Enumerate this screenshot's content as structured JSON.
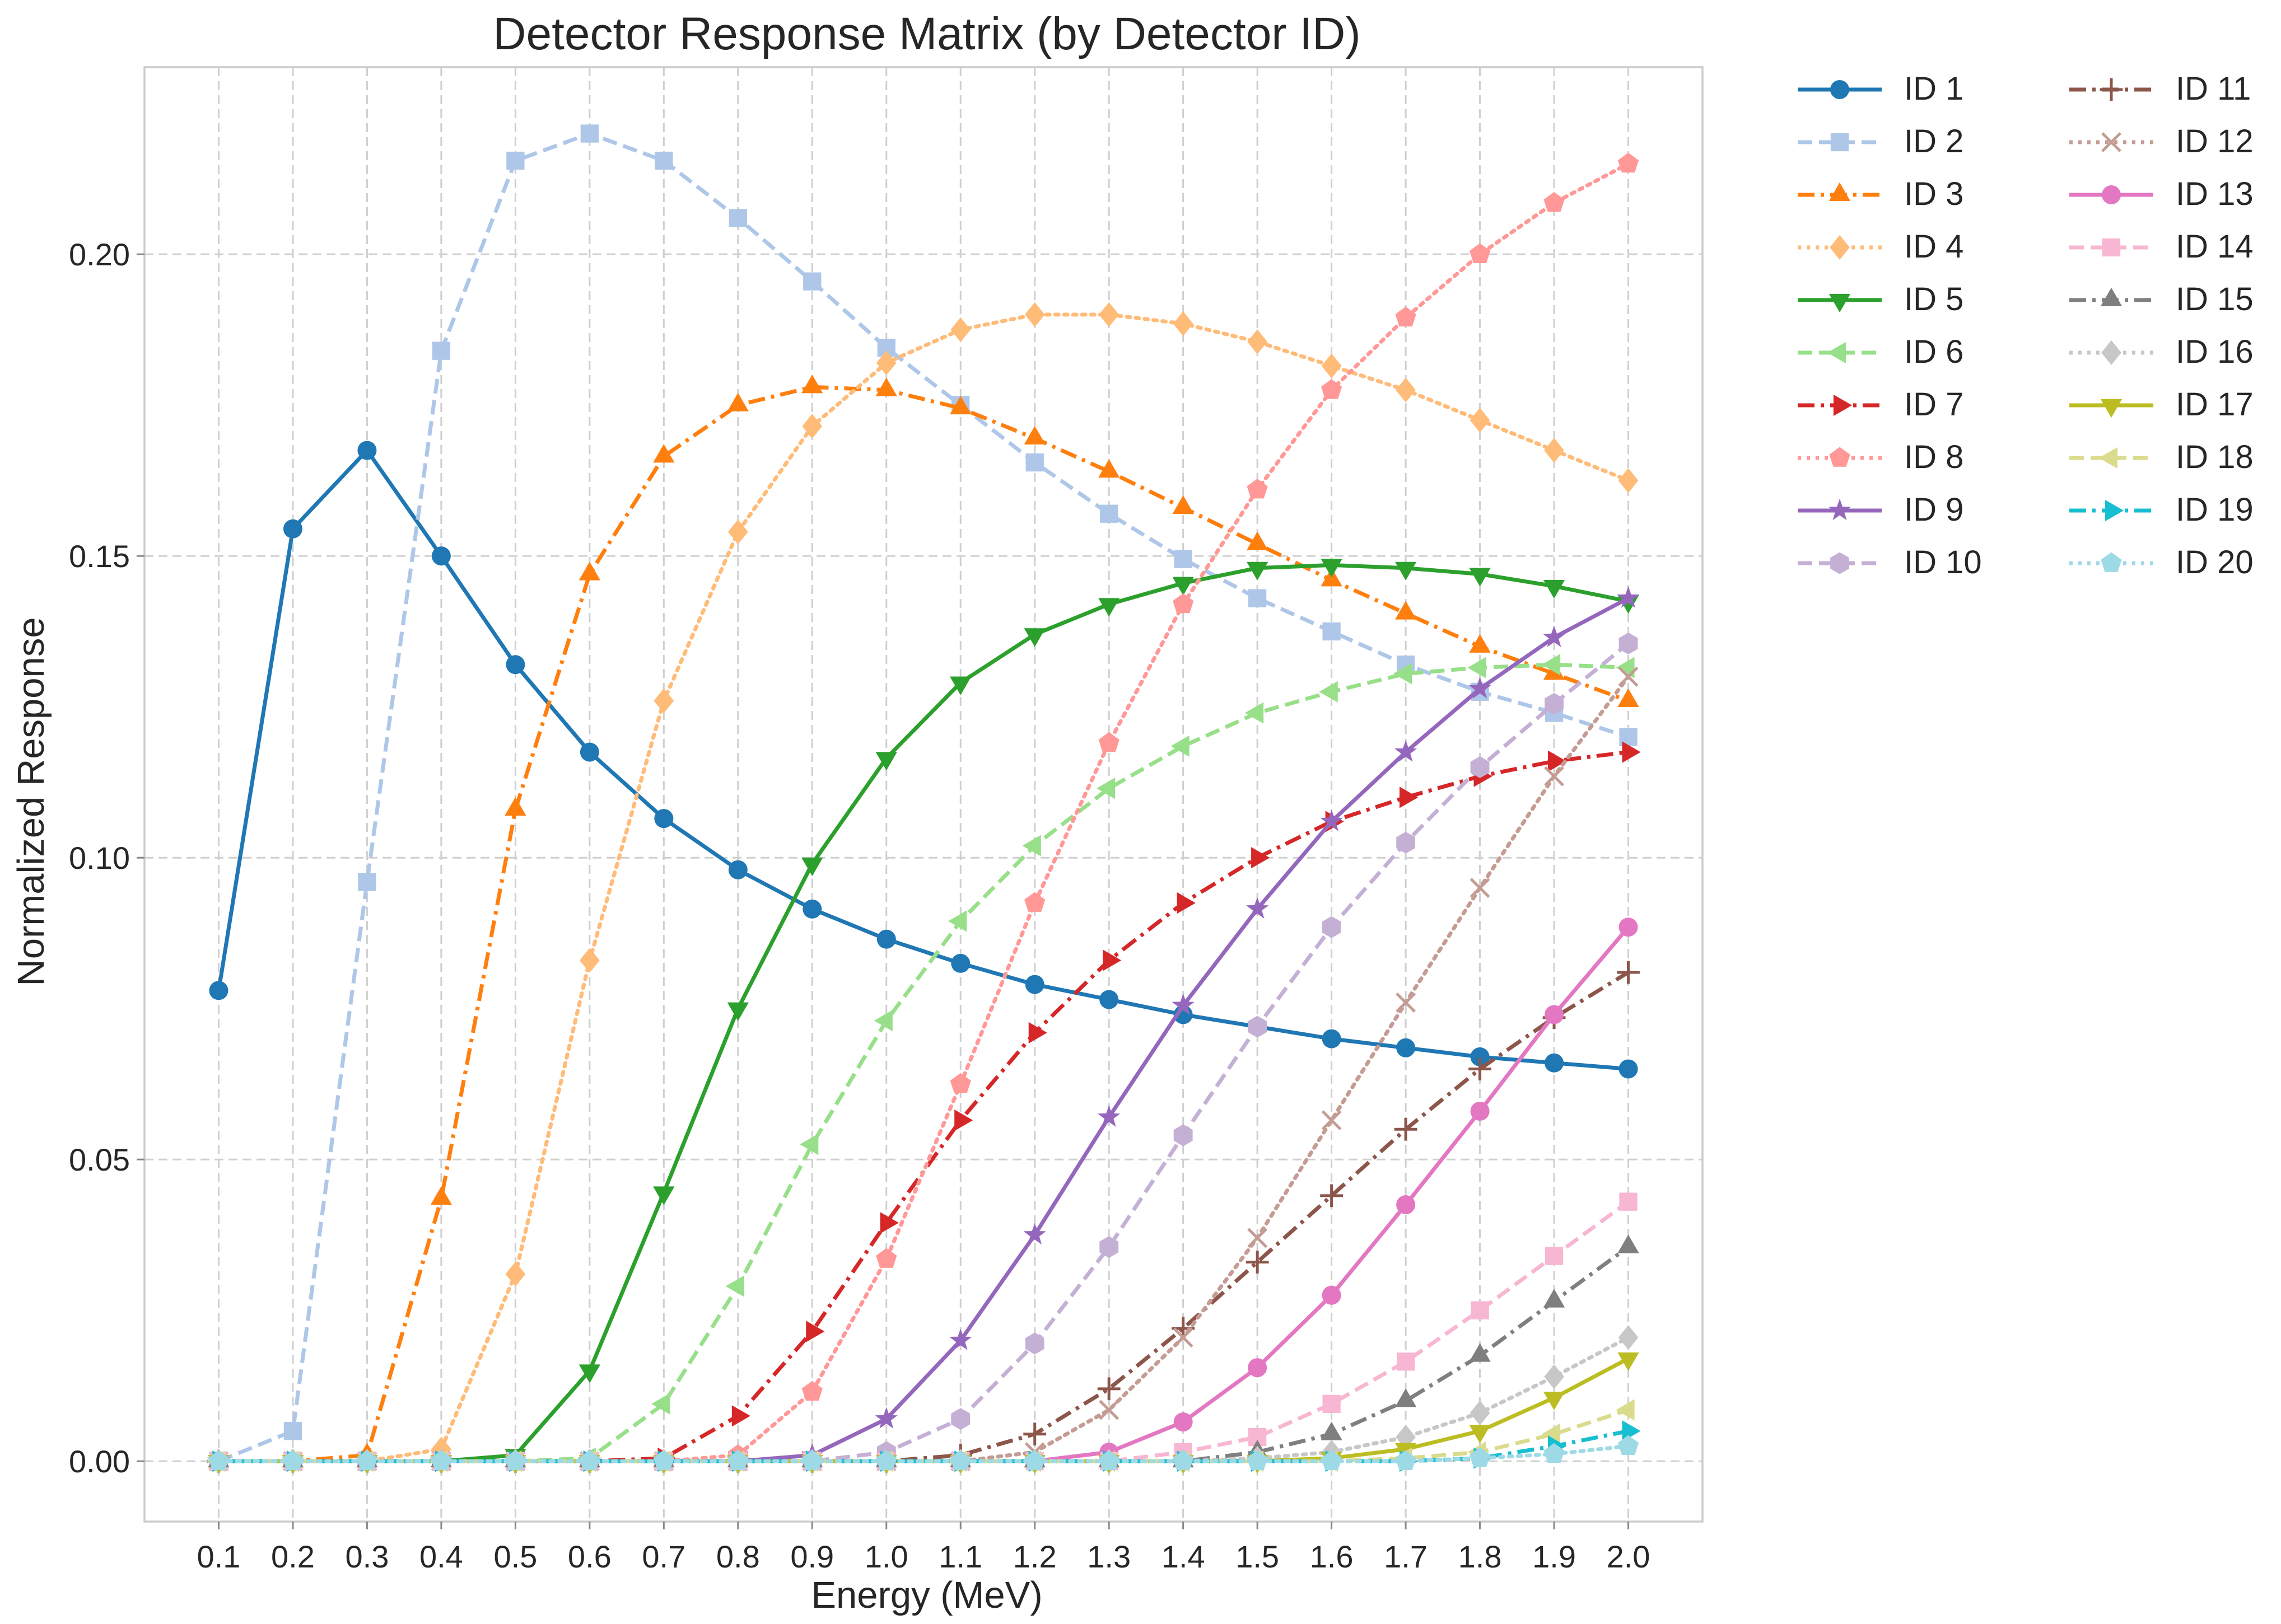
{
  "chart_data": {
    "type": "line",
    "title": "Detector Response Matrix (by Detector ID)",
    "xlabel": "Energy (MeV)",
    "ylabel": "Normalized Response",
    "xlim": [
      0.0,
      2.1
    ],
    "ylim": [
      -0.01,
      0.231
    ],
    "x": [
      0.1,
      0.2,
      0.3,
      0.4,
      0.5,
      0.6,
      0.7,
      0.8,
      0.9,
      1.0,
      1.1,
      1.2,
      1.3,
      1.4,
      1.5,
      1.6,
      1.7,
      1.8,
      1.9,
      2.0
    ],
    "x_tick_labels": [
      "0.1",
      "0.2",
      "0.3",
      "0.4",
      "0.5",
      "0.6",
      "0.7",
      "0.8",
      "0.9",
      "1.0",
      "1.1",
      "1.2",
      "1.3",
      "1.4",
      "1.5",
      "1.6",
      "1.7",
      "1.8",
      "1.9",
      "2.0"
    ],
    "y_ticks": [
      0.0,
      0.05,
      0.1,
      0.15,
      0.2
    ],
    "y_tick_labels": [
      "0.00",
      "0.05",
      "0.10",
      "0.15",
      "0.20"
    ],
    "grid": true,
    "legend": "outside-right, 2 columns",
    "series": [
      {
        "name": "ID 1",
        "color": "#1f77b4",
        "marker": "circle",
        "dash": "solid",
        "values": [
          0.078,
          0.1545,
          0.1675,
          0.15,
          0.132,
          0.1175,
          0.1065,
          0.098,
          0.0915,
          0.0865,
          0.0825,
          0.079,
          0.0765,
          0.074,
          0.072,
          0.07,
          0.0685,
          0.067,
          0.066,
          0.065
        ]
      },
      {
        "name": "ID 2",
        "color": "#aec7e8",
        "marker": "square",
        "dash": "dashed",
        "values": [
          0.0,
          0.005,
          0.096,
          0.184,
          0.2155,
          0.22,
          0.2155,
          0.206,
          0.1955,
          0.1845,
          0.175,
          0.1655,
          0.157,
          0.1495,
          0.143,
          0.1375,
          0.132,
          0.1275,
          0.124,
          0.12
        ]
      },
      {
        "name": "ID 3",
        "color": "#ff7f0e",
        "marker": "triangle-up",
        "dash": "dashdot",
        "values": [
          0.0,
          0.0,
          0.001,
          0.0435,
          0.108,
          0.147,
          0.1665,
          0.175,
          0.178,
          0.1775,
          0.1745,
          0.1695,
          0.164,
          0.158,
          0.152,
          0.146,
          0.1405,
          0.135,
          0.1305,
          0.126
        ]
      },
      {
        "name": "ID 4",
        "color": "#ffbb78",
        "marker": "diamond",
        "dash": "dotted",
        "values": [
          0.0,
          0.0,
          0.0,
          0.002,
          0.031,
          0.083,
          0.126,
          0.154,
          0.1715,
          0.182,
          0.1875,
          0.19,
          0.19,
          0.1885,
          0.1855,
          0.1815,
          0.1775,
          0.1725,
          0.1675,
          0.1625
        ]
      },
      {
        "name": "ID 5",
        "color": "#2ca02c",
        "marker": "triangle-down",
        "dash": "solid",
        "values": [
          0.0,
          0.0,
          0.0,
          0.0,
          0.001,
          0.015,
          0.0445,
          0.075,
          0.099,
          0.1165,
          0.129,
          0.137,
          0.142,
          0.1455,
          0.148,
          0.1485,
          0.148,
          0.147,
          0.145,
          0.1425
        ]
      },
      {
        "name": "ID 6",
        "color": "#98df8a",
        "marker": "triangle-left",
        "dash": "dashed",
        "values": [
          0.0,
          0.0,
          0.0,
          0.0,
          0.0,
          0.0005,
          0.0095,
          0.029,
          0.0525,
          0.073,
          0.0895,
          0.102,
          0.1115,
          0.1185,
          0.124,
          0.1275,
          0.1305,
          0.1315,
          0.132,
          0.1315
        ]
      },
      {
        "name": "ID 7",
        "color": "#d62728",
        "marker": "triangle-right",
        "dash": "dashdot",
        "values": [
          0.0,
          0.0,
          0.0,
          0.0,
          0.0,
          0.0,
          0.0005,
          0.0075,
          0.0215,
          0.0395,
          0.0565,
          0.071,
          0.083,
          0.0925,
          0.1,
          0.106,
          0.11,
          0.1135,
          0.116,
          0.1175
        ]
      },
      {
        "name": "ID 8",
        "color": "#ff9896",
        "marker": "pentagon",
        "dash": "dotted",
        "values": [
          0.0,
          0.0,
          0.0,
          0.0,
          0.0,
          0.0,
          0.0,
          0.001,
          0.0115,
          0.0335,
          0.0625,
          0.0925,
          0.119,
          0.142,
          0.161,
          0.1775,
          0.1895,
          0.2,
          0.2085,
          0.215
        ]
      },
      {
        "name": "ID 9",
        "color": "#9467bd",
        "marker": "star",
        "dash": "solid",
        "values": [
          0.0,
          0.0,
          0.0,
          0.0,
          0.0,
          0.0,
          0.0,
          0.0,
          0.001,
          0.007,
          0.02,
          0.0375,
          0.057,
          0.0755,
          0.0915,
          0.106,
          0.1175,
          0.128,
          0.1365,
          0.143
        ]
      },
      {
        "name": "ID 10",
        "color": "#c5b0d5",
        "marker": "hexagon",
        "dash": "dashed",
        "values": [
          0.0,
          0.0,
          0.0,
          0.0,
          0.0,
          0.0,
          0.0,
          0.0,
          0.0,
          0.0015,
          0.007,
          0.0195,
          0.0355,
          0.054,
          0.072,
          0.0885,
          0.1025,
          0.115,
          0.1255,
          0.1355
        ]
      },
      {
        "name": "ID 11",
        "color": "#8c564b",
        "marker": "plus",
        "dash": "dashdot",
        "values": [
          0.0,
          0.0,
          0.0,
          0.0,
          0.0,
          0.0,
          0.0,
          0.0,
          0.0,
          0.0,
          0.001,
          0.0045,
          0.012,
          0.022,
          0.033,
          0.044,
          0.055,
          0.065,
          0.0735,
          0.081
        ]
      },
      {
        "name": "ID 12",
        "color": "#c49c94",
        "marker": "x",
        "dash": "dotted",
        "values": [
          0.0,
          0.0,
          0.0,
          0.0,
          0.0,
          0.0,
          0.0,
          0.0,
          0.0,
          0.0,
          0.0,
          0.0015,
          0.0085,
          0.0205,
          0.037,
          0.0565,
          0.076,
          0.095,
          0.1135,
          0.13
        ]
      },
      {
        "name": "ID 13",
        "color": "#e377c2",
        "marker": "circle",
        "dash": "solid",
        "values": [
          0.0,
          0.0,
          0.0,
          0.0,
          0.0,
          0.0,
          0.0,
          0.0,
          0.0,
          0.0,
          0.0,
          0.0,
          0.0015,
          0.0065,
          0.0155,
          0.0275,
          0.0425,
          0.058,
          0.074,
          0.0885
        ]
      },
      {
        "name": "ID 14",
        "color": "#f7b6d2",
        "marker": "square",
        "dash": "dashed",
        "values": [
          0.0,
          0.0,
          0.0,
          0.0,
          0.0,
          0.0,
          0.0,
          0.0,
          0.0,
          0.0,
          0.0,
          0.0,
          0.0,
          0.0015,
          0.004,
          0.0095,
          0.0165,
          0.025,
          0.034,
          0.043
        ]
      },
      {
        "name": "ID 15",
        "color": "#7f7f7f",
        "marker": "triangle-up",
        "dash": "dashdot",
        "values": [
          0.0,
          0.0,
          0.0,
          0.0,
          0.0,
          0.0,
          0.0,
          0.0,
          0.0,
          0.0,
          0.0,
          0.0,
          0.0,
          0.0,
          0.0015,
          0.0045,
          0.01,
          0.0175,
          0.0265,
          0.0355
        ]
      },
      {
        "name": "ID 16",
        "color": "#c7c7c7",
        "marker": "diamond",
        "dash": "dotted",
        "values": [
          0.0,
          0.0,
          0.0,
          0.0,
          0.0,
          0.0,
          0.0,
          0.0,
          0.0,
          0.0,
          0.0,
          0.0,
          0.0,
          0.0,
          0.0005,
          0.0015,
          0.004,
          0.008,
          0.014,
          0.0205
        ]
      },
      {
        "name": "ID 17",
        "color": "#bcbd22",
        "marker": "triangle-down",
        "dash": "solid",
        "values": [
          0.0,
          0.0,
          0.0,
          0.0,
          0.0,
          0.0,
          0.0,
          0.0,
          0.0,
          0.0,
          0.0,
          0.0,
          0.0,
          0.0,
          0.0,
          0.0005,
          0.002,
          0.005,
          0.0105,
          0.017
        ]
      },
      {
        "name": "ID 18",
        "color": "#dbdb8d",
        "marker": "triangle-left",
        "dash": "dashed",
        "values": [
          0.0,
          0.0,
          0.0,
          0.0,
          0.0,
          0.0,
          0.0,
          0.0,
          0.0,
          0.0,
          0.0,
          0.0,
          0.0,
          0.0,
          0.0,
          0.0,
          0.0005,
          0.0015,
          0.0045,
          0.0085
        ]
      },
      {
        "name": "ID 19",
        "color": "#17becf",
        "marker": "triangle-right",
        "dash": "dashdot",
        "values": [
          0.0,
          0.0,
          0.0,
          0.0,
          0.0,
          0.0,
          0.0,
          0.0,
          0.0,
          0.0,
          0.0,
          0.0,
          0.0,
          0.0,
          0.0,
          0.0,
          0.0,
          0.0005,
          0.0025,
          0.005
        ]
      },
      {
        "name": "ID 20",
        "color": "#9edae5",
        "marker": "pentagon",
        "dash": "dotted",
        "values": [
          0.0,
          0.0,
          0.0,
          0.0,
          0.0,
          0.0,
          0.0,
          0.0,
          0.0,
          0.0,
          0.0,
          0.0,
          0.0,
          0.0,
          0.0,
          0.0,
          0.0,
          0.0005,
          0.0012,
          0.0025
        ]
      }
    ]
  }
}
